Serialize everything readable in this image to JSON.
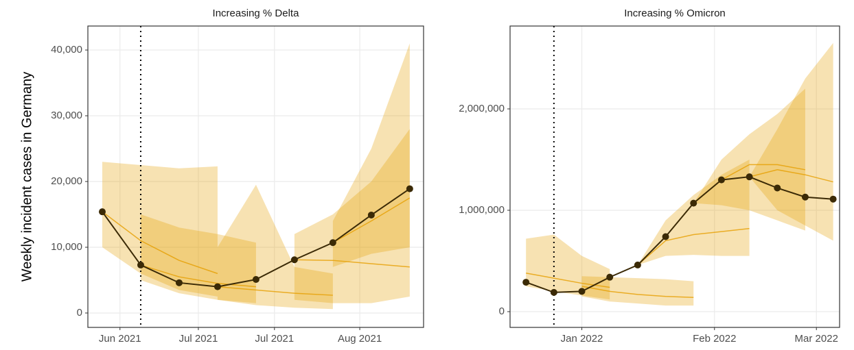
{
  "chart_data": [
    {
      "type": "line",
      "title": "Increasing % Delta",
      "ylabel": "Weekly incident cases in Germany",
      "x": [
        0,
        1,
        2,
        3,
        4,
        5,
        6,
        7,
        8
      ],
      "values": [
        15400,
        7300,
        4600,
        4000,
        5100,
        8100,
        10700,
        14900,
        18900
      ],
      "color": "#3b2a06",
      "band_color": "#e69f00",
      "forecasts": [
        {
          "x": [
            0,
            1,
            2,
            3
          ],
          "median": [
            15400,
            11000,
            8000,
            6000
          ],
          "lower": [
            10000,
            6000,
            3500,
            2500
          ],
          "upper": [
            23000,
            22500,
            22000,
            22300
          ]
        },
        {
          "x": [
            1,
            2,
            3,
            4
          ],
          "median": [
            7300,
            5500,
            4500,
            4000
          ],
          "lower": [
            5000,
            3000,
            2000,
            1500
          ],
          "upper": [
            15000,
            13000,
            12000,
            10700
          ]
        },
        {
          "x": [
            3,
            4,
            5,
            6
          ],
          "median": [
            4000,
            3500,
            3000,
            2700
          ],
          "lower": [
            2000,
            1200,
            800,
            600
          ],
          "upper": [
            10000,
            19500,
            7000,
            6000
          ]
        },
        {
          "x": [
            5,
            6,
            7,
            8
          ],
          "median": [
            8100,
            8000,
            7500,
            7000
          ],
          "lower": [
            2000,
            1500,
            1500,
            2500
          ],
          "upper": [
            12000,
            15000,
            20000,
            28000
          ]
        },
        {
          "x": [
            6,
            7,
            8
          ],
          "median": [
            10700,
            14000,
            17500
          ],
          "lower": [
            7000,
            9000,
            10000
          ],
          "upper": [
            14000,
            25000,
            41000
          ]
        }
      ],
      "vline": 1,
      "xlim": [
        -0.375,
        8.36
      ],
      "ylim": [
        -2190,
        43650
      ],
      "xticks": [
        {
          "value": 0.46,
          "label": "Jun 2021"
        },
        {
          "value": 2.5,
          "label": "Jul 2021"
        },
        {
          "value": 4.48,
          "label": "Jul 2021"
        },
        {
          "value": 6.7,
          "label": "Aug 2021"
        }
      ],
      "yticks": [
        0,
        {
          "value": 10000,
          "label": "10,000"
        },
        {
          "value": 20000,
          "label": "20,000"
        },
        {
          "value": 30000,
          "label": "30,000"
        },
        {
          "value": 40000,
          "label": "40,000"
        }
      ],
      "grid": true
    },
    {
      "type": "line",
      "title": "Increasing % Omicron",
      "x": [
        0,
        1,
        2,
        3,
        4,
        5,
        6,
        7,
        8,
        9,
        10,
        11
      ],
      "values": [
        290000,
        190000,
        200000,
        340000,
        460000,
        740000,
        1070000,
        1300000,
        1330000,
        1220000,
        1130000,
        1110000
      ],
      "color": "#3b2a06",
      "band_color": "#e69f00",
      "forecasts": [
        {
          "x": [
            0,
            1,
            2,
            3
          ],
          "median": [
            380000,
            330000,
            280000,
            240000
          ],
          "lower": [
            250000,
            200000,
            160000,
            120000
          ],
          "upper": [
            720000,
            760000,
            550000,
            420000
          ]
        },
        {
          "x": [
            2,
            3,
            4,
            5,
            6
          ],
          "median": [
            250000,
            200000,
            170000,
            150000,
            140000
          ],
          "lower": [
            150000,
            100000,
            80000,
            60000,
            60000
          ],
          "upper": [
            350000,
            340000,
            330000,
            320000,
            300000
          ]
        },
        {
          "x": [
            4,
            5,
            6,
            7,
            8
          ],
          "median": [
            460000,
            700000,
            760000,
            790000,
            820000
          ],
          "lower": [
            460000,
            550000,
            560000,
            550000,
            550000
          ],
          "upper": [
            460000,
            900000,
            1150000,
            1350000,
            1500000
          ]
        },
        {
          "x": [
            6,
            7,
            8,
            9,
            10
          ],
          "median": [
            1070000,
            1300000,
            1450000,
            1450000,
            1400000
          ],
          "lower": [
            1070000,
            1050000,
            1000000,
            900000,
            800000
          ],
          "upper": [
            1070000,
            1500000,
            1750000,
            1950000,
            2200000
          ]
        },
        {
          "x": [
            8,
            9,
            10,
            11
          ],
          "median": [
            1330000,
            1400000,
            1350000,
            1280000
          ],
          "lower": [
            1330000,
            1000000,
            850000,
            700000
          ],
          "upper": [
            1330000,
            1800000,
            2300000,
            2650000
          ]
        }
      ],
      "vline": 1,
      "xlim": [
        -0.57,
        11.23
      ],
      "ylim": [
        -155400,
        2817600
      ],
      "xticks": [
        {
          "value": 2.0,
          "label": "Jan 2022"
        },
        {
          "value": 6.75,
          "label": "Feb 2022"
        },
        {
          "value": 10.4,
          "label": "Mar 2022"
        }
      ],
      "yticks": [
        0,
        {
          "value": 1000000,
          "label": "1,000,000"
        },
        {
          "value": 2000000,
          "label": "2,000,000"
        }
      ],
      "grid": true
    }
  ]
}
